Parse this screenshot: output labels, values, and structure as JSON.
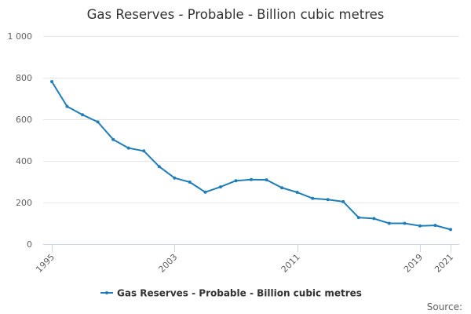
{
  "colors": {
    "series": "#1f7db9",
    "grid": "#e6e6e6",
    "axis": "#ccd6eb"
  },
  "chart_data": {
    "type": "line",
    "title": "Gas Reserves - Probable - Billion cubic metres",
    "xlabel": "",
    "ylabel": "",
    "x": [
      1995,
      1996,
      1997,
      1998,
      1999,
      2000,
      2001,
      2002,
      2003,
      2004,
      2005,
      2006,
      2007,
      2008,
      2009,
      2010,
      2011,
      2012,
      2013,
      2014,
      2015,
      2016,
      2017,
      2018,
      2019,
      2020,
      2021
    ],
    "series": [
      {
        "name": "Gas Reserves - Probable - Billion cubic metres",
        "values": [
          781,
          662,
          622,
          587,
          503,
          462,
          448,
          373,
          318,
          298,
          250,
          275,
          305,
          310,
          309,
          271,
          249,
          220,
          214,
          204,
          128,
          123,
          100,
          100,
          88,
          90,
          70
        ]
      }
    ],
    "ylim": [
      0,
      1000
    ],
    "y_ticks": [
      0,
      200,
      400,
      600,
      800,
      1000
    ],
    "y_tick_labels": [
      "0",
      "200",
      "400",
      "600",
      "800",
      "1 000"
    ],
    "x_ticks": [
      1995,
      2003,
      2011,
      2019,
      2021
    ],
    "x_tick_labels": [
      "1995",
      "2003",
      "2011",
      "2019",
      "2021"
    ],
    "legend": "bottom-center",
    "grid": true,
    "credit": "Source:"
  }
}
